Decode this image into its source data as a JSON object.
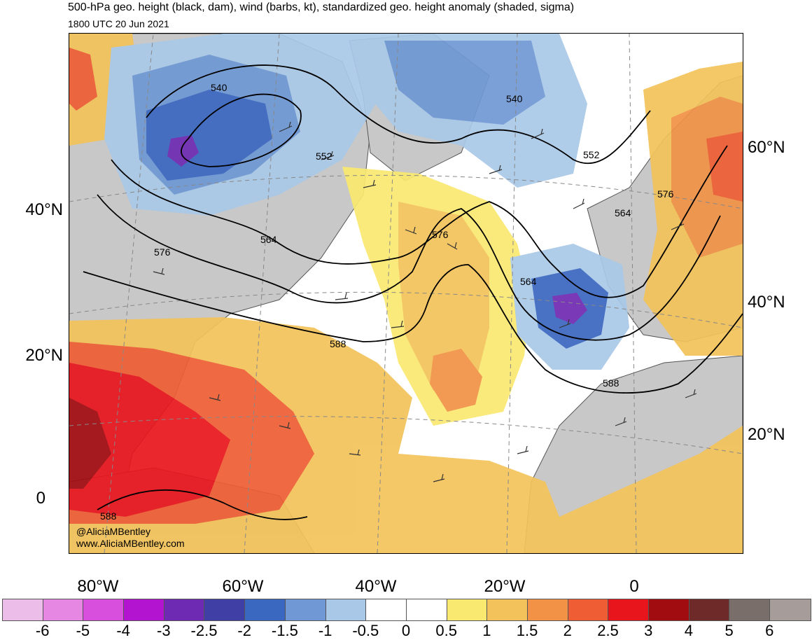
{
  "header": {
    "title": "500-hPa geo. height (black, dam), wind (barbs, kt), standardized geo. height anomaly (shaded, sigma)",
    "valid_time": "1800 UTC 20 Jun 2021"
  },
  "map": {
    "contour_labels": [
      "540",
      "540",
      "552",
      "552",
      "564",
      "564",
      "564",
      "576",
      "576",
      "576",
      "588",
      "588",
      "588"
    ],
    "lat_labels_left": [
      "40°N",
      "20°N",
      "0"
    ],
    "lat_labels_right": [
      "60°N",
      "40°N",
      "20°N"
    ],
    "lon_labels": [
      "80°W",
      "60°W",
      "40°W",
      "20°W",
      "0"
    ],
    "credit": [
      "@AliciaMBentley",
      "www.AliciaMBentley.com"
    ]
  },
  "colorbar": {
    "labels": [
      "-6",
      "-5",
      "-4",
      "-3",
      "-2.5",
      "-2",
      "-1.5",
      "-1",
      "-0.5",
      "0",
      "0.5",
      "1",
      "1.5",
      "2",
      "2.5",
      "3",
      "4",
      "5",
      "6"
    ],
    "colors": [
      "#ebbde8",
      "#e687e4",
      "#d94fdd",
      "#b314cf",
      "#6f2ab3",
      "#3f3fa6",
      "#3a67c0",
      "#6f98d4",
      "#a9c8e8",
      "#ffffff",
      "#ffffff",
      "#f9e970",
      "#f3c25a",
      "#f19246",
      "#ee5d33",
      "#e8151c",
      "#a10c10",
      "#6e2a28",
      "#7a6e6b",
      "#a69d9a"
    ]
  },
  "palette": {
    "land": "#c8c8c8",
    "coast": "#555555",
    "contour": "#000000"
  }
}
